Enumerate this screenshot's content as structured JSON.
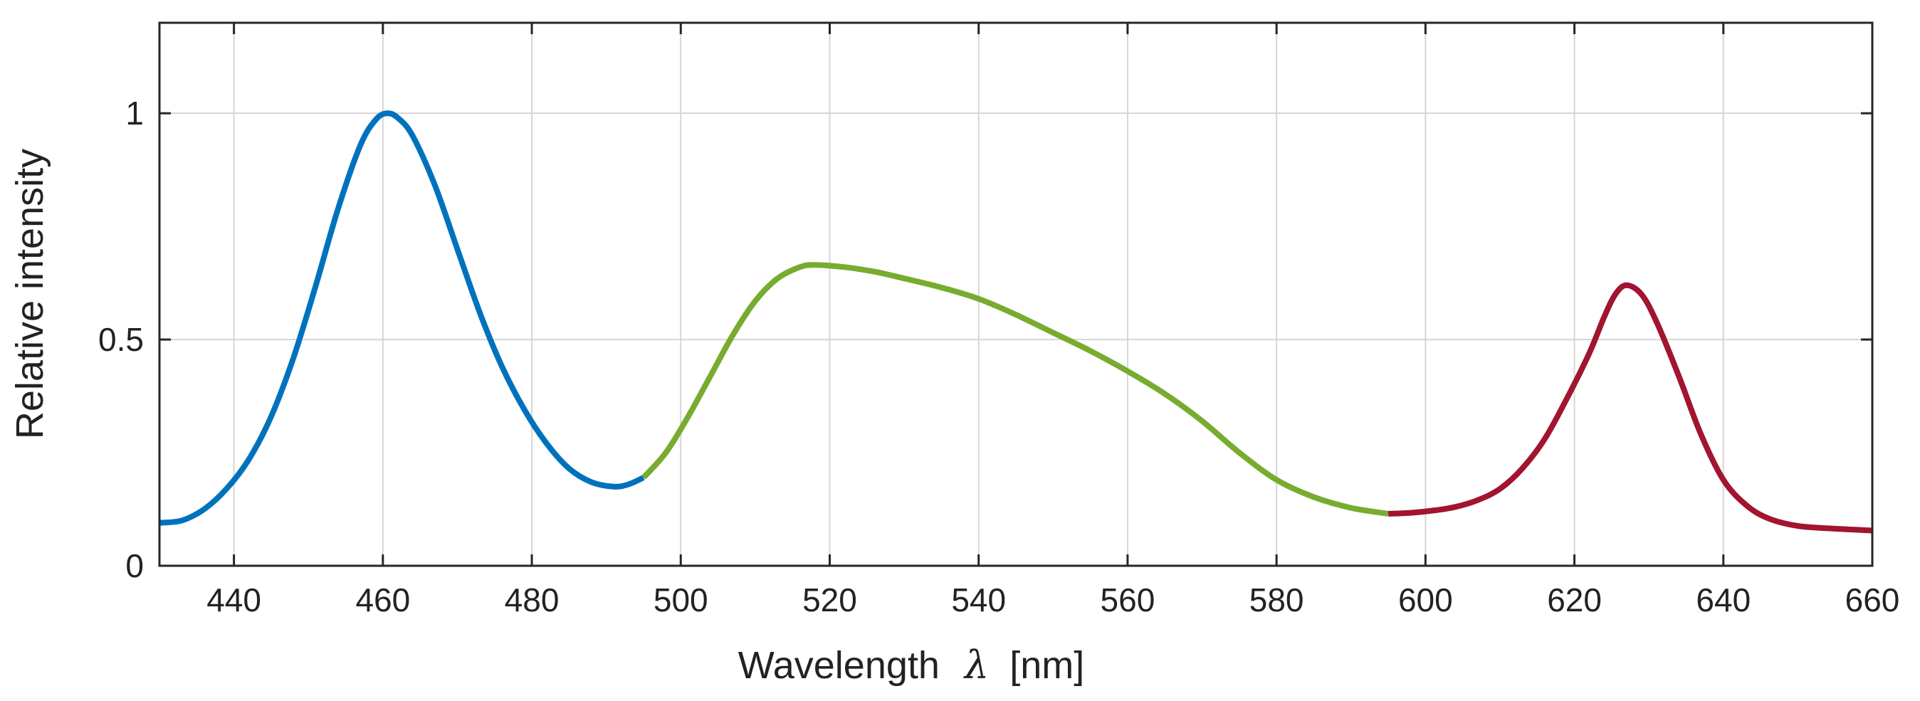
{
  "chart_data": {
    "type": "line",
    "title": "",
    "xlabel_prefix": "Wavelength",
    "xlabel_symbol": "λ",
    "xlabel_unit": "[nm]",
    "ylabel": "Relative intensity",
    "xlim": [
      430,
      660
    ],
    "ylim": [
      0,
      1.2
    ],
    "xticks": [
      440,
      460,
      480,
      500,
      520,
      540,
      560,
      580,
      600,
      620,
      640,
      660
    ],
    "yticks": [
      0,
      0.5,
      1
    ],
    "ytick_labels": [
      "0",
      "0.5",
      "1"
    ],
    "grid": true,
    "series": [
      {
        "name": "blue",
        "color": "#0072BD",
        "x": [
          430,
          433,
          436,
          439,
          442,
          445,
          448,
          451,
          454,
          457,
          459,
          460.5,
          462,
          464,
          467,
          470,
          473,
          476,
          479,
          482,
          485,
          488,
          491,
          493,
          495
        ],
        "y": [
          0.095,
          0.1,
          0.125,
          0.17,
          0.235,
          0.33,
          0.46,
          0.62,
          0.79,
          0.93,
          0.985,
          1.0,
          0.99,
          0.95,
          0.84,
          0.7,
          0.56,
          0.44,
          0.345,
          0.27,
          0.215,
          0.185,
          0.175,
          0.18,
          0.195
        ]
      },
      {
        "name": "green",
        "color": "#77AC30",
        "x": [
          495,
          498,
          501,
          504,
          507,
          510,
          513,
          516,
          518,
          522,
          526,
          530,
          535,
          540,
          545,
          550,
          555,
          560,
          565,
          570,
          575,
          580,
          585,
          590,
          595
        ],
        "y": [
          0.195,
          0.25,
          0.33,
          0.42,
          0.51,
          0.585,
          0.635,
          0.66,
          0.665,
          0.66,
          0.65,
          0.635,
          0.615,
          0.59,
          0.555,
          0.515,
          0.475,
          0.43,
          0.38,
          0.32,
          0.25,
          0.19,
          0.152,
          0.128,
          0.115
        ]
      },
      {
        "name": "red",
        "color": "#A2142F",
        "x": [
          595,
          598,
          601,
          604,
          607,
          610,
          613,
          616,
          619,
          622,
          624,
          625.5,
          627,
          629,
          631,
          634,
          637,
          640,
          643,
          646,
          650,
          655,
          660
        ],
        "y": [
          0.115,
          0.117,
          0.122,
          0.13,
          0.145,
          0.17,
          0.215,
          0.28,
          0.37,
          0.47,
          0.55,
          0.6,
          0.62,
          0.6,
          0.54,
          0.42,
          0.29,
          0.19,
          0.135,
          0.105,
          0.088,
          0.082,
          0.078
        ]
      }
    ]
  }
}
